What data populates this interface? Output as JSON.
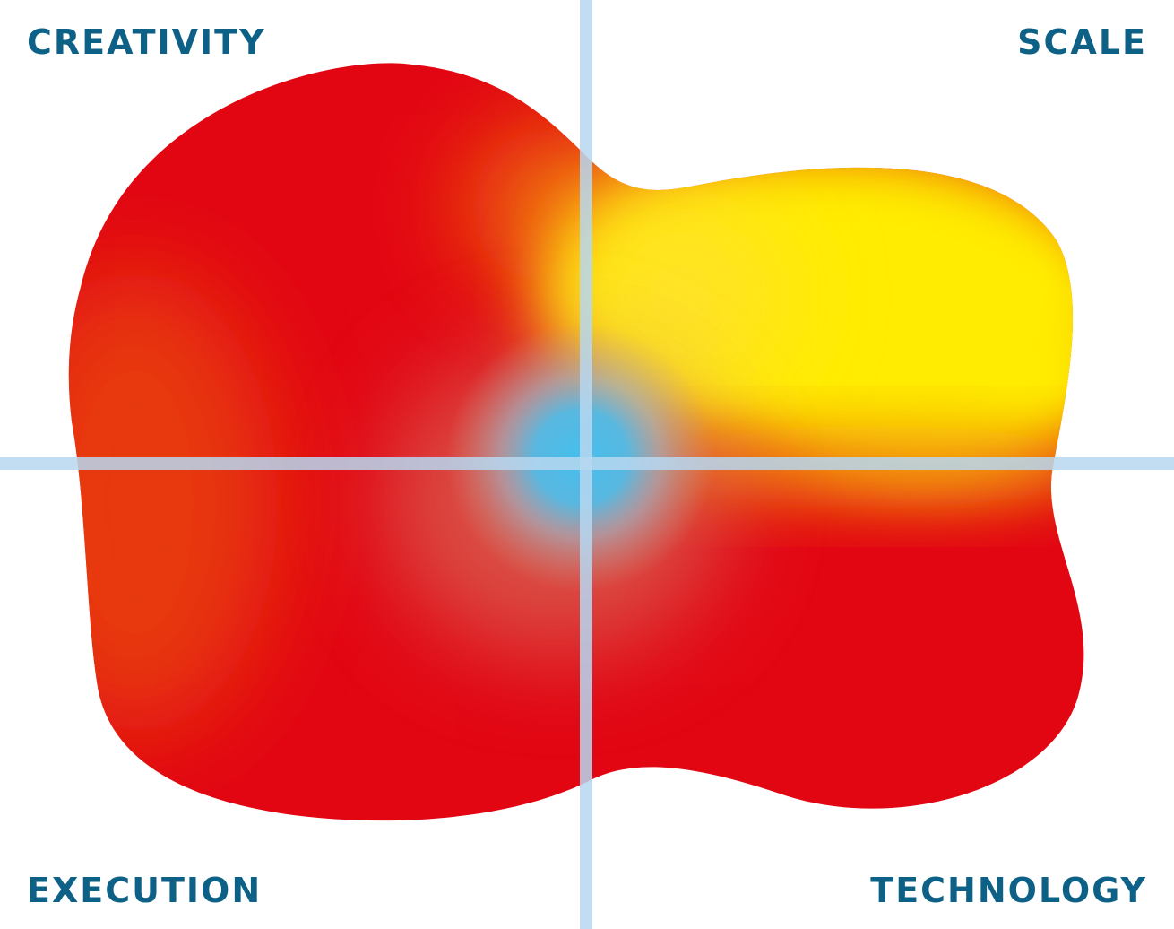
{
  "quadrants": {
    "top_left": "CREATIVITY",
    "top_right": "SCALE",
    "bottom_left": "EXECUTION",
    "bottom_right": "TECHNOLOGY"
  },
  "colors": {
    "label": "#0d6186",
    "axis": "#b7d7f0",
    "red": "#e20613",
    "orange": "#e8430f",
    "yellow": "#ffec00",
    "center_blue": "#45c0ee"
  }
}
